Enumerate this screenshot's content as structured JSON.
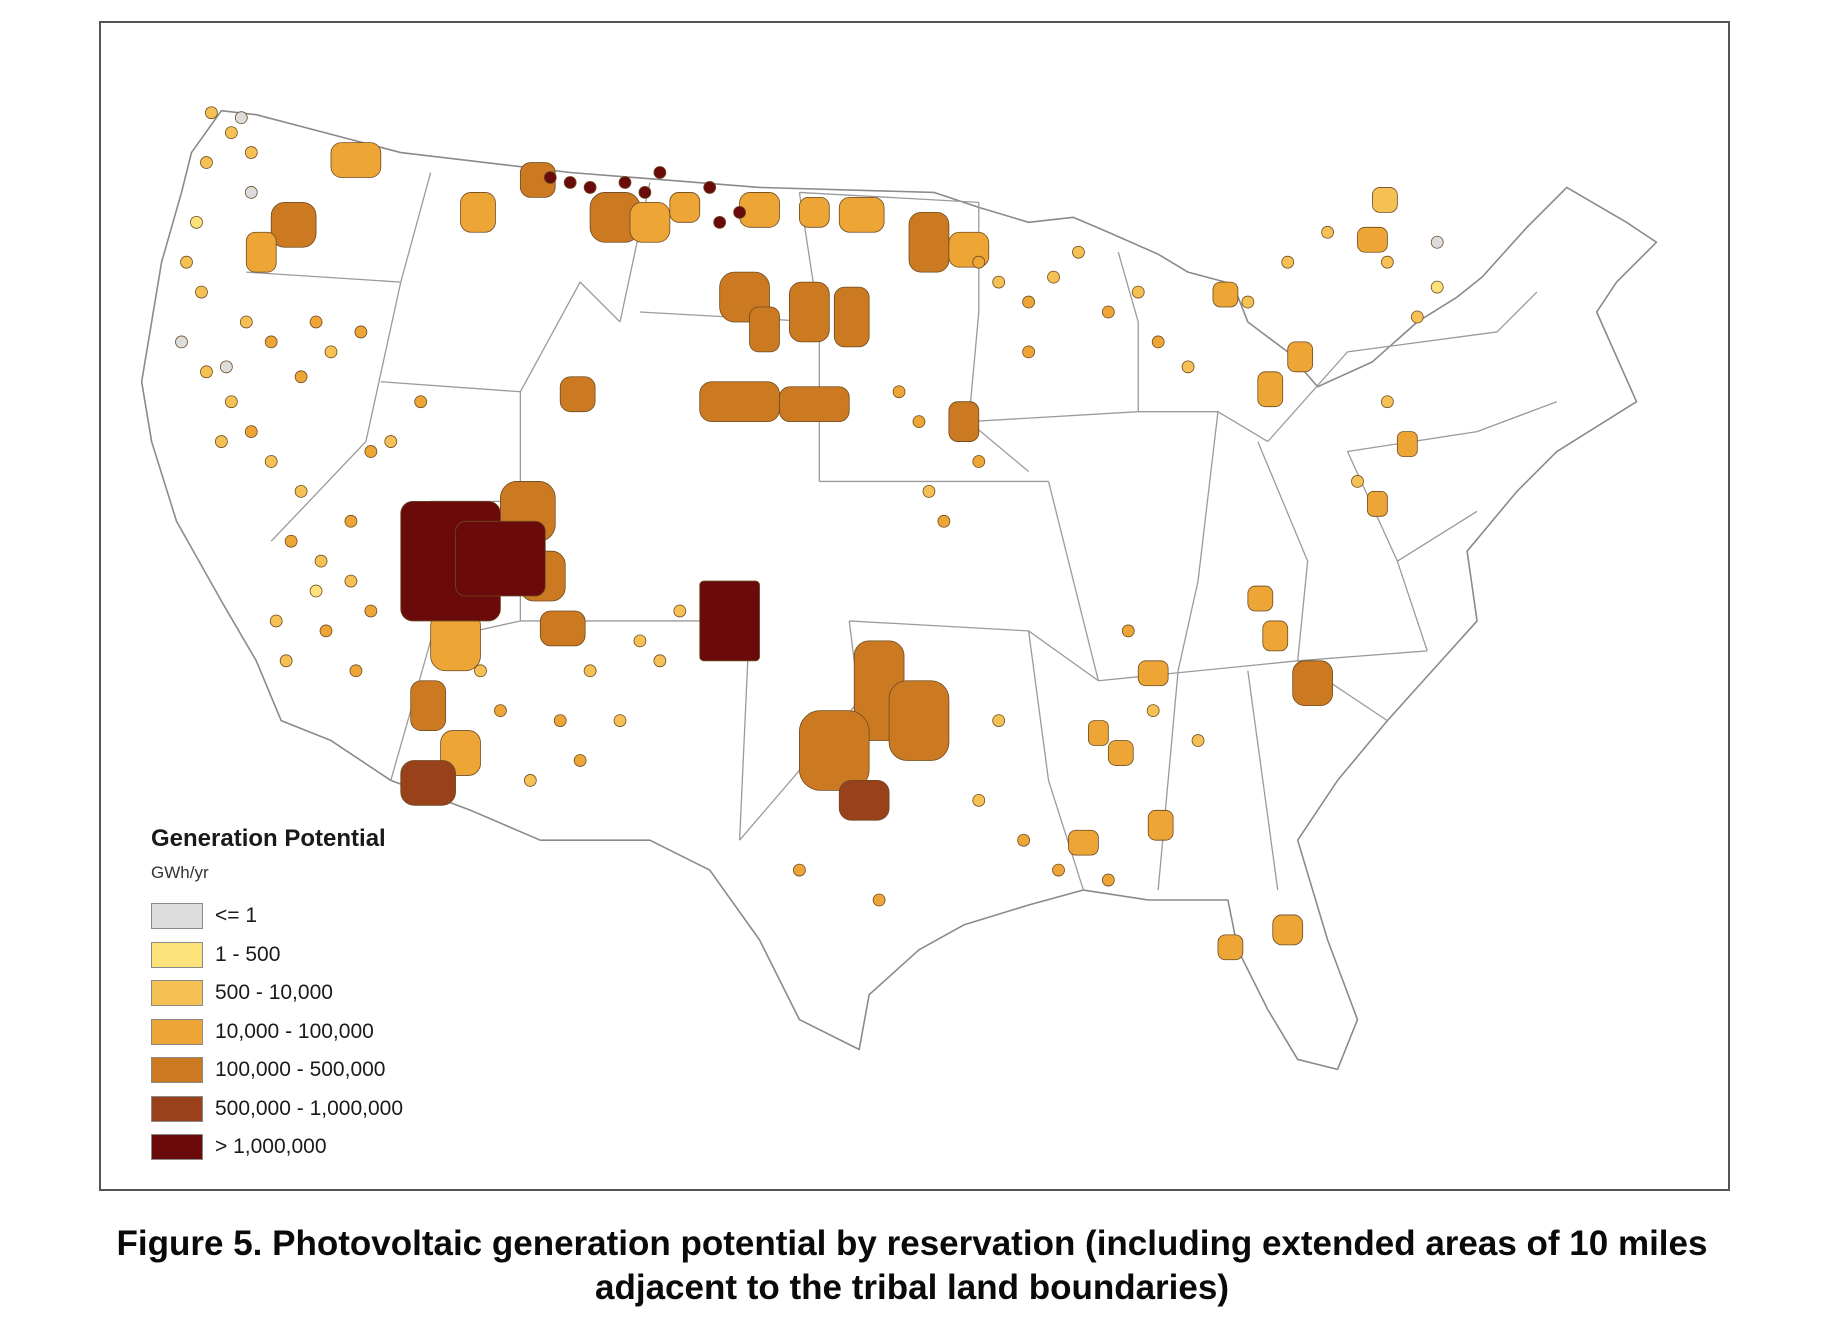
{
  "legend": {
    "title": "Generation Potential",
    "unit": "GWh/yr",
    "classes": [
      {
        "label": "<= 1",
        "color": "#dcdcdc"
      },
      {
        "label": "1 - 500",
        "color": "#fbe27a"
      },
      {
        "label": "500 - 10,000",
        "color": "#f6c154"
      },
      {
        "label": "10,000 - 100,000",
        "color": "#eda536"
      },
      {
        "label": "100,000 - 500,000",
        "color": "#cc7a22"
      },
      {
        "label": "500,000 - 1,000,000",
        "color": "#99411a"
      },
      {
        "label": "> 1,000,000",
        "color": "#6b0a0a"
      }
    ]
  },
  "caption": {
    "line1": "Figure 5. Photovoltaic generation potential by reservation (including extended areas of 10 miles",
    "line2": "adjacent to the tribal land boundaries)"
  }
}
